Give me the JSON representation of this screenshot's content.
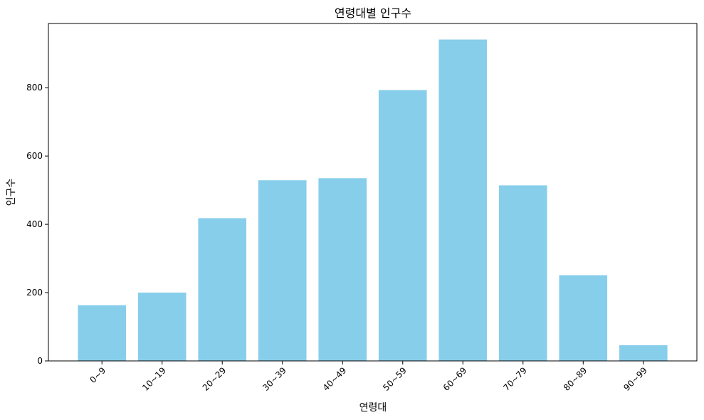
{
  "chart_data": {
    "type": "bar",
    "title": "연령대별 인구수",
    "xlabel": "연령대",
    "ylabel": "인구수",
    "categories": [
      "0~9",
      "10~19",
      "20~29",
      "30~39",
      "40~49",
      "50~59",
      "60~69",
      "70~79",
      "80~89",
      "90~99"
    ],
    "values": [
      163,
      200,
      418,
      529,
      535,
      793,
      941,
      514,
      251,
      46
    ],
    "yticks": [
      0,
      200,
      400,
      600,
      800
    ],
    "ylim": [
      0,
      988
    ],
    "bar_color": "#87ceeb",
    "grid": false,
    "legend": "none"
  }
}
